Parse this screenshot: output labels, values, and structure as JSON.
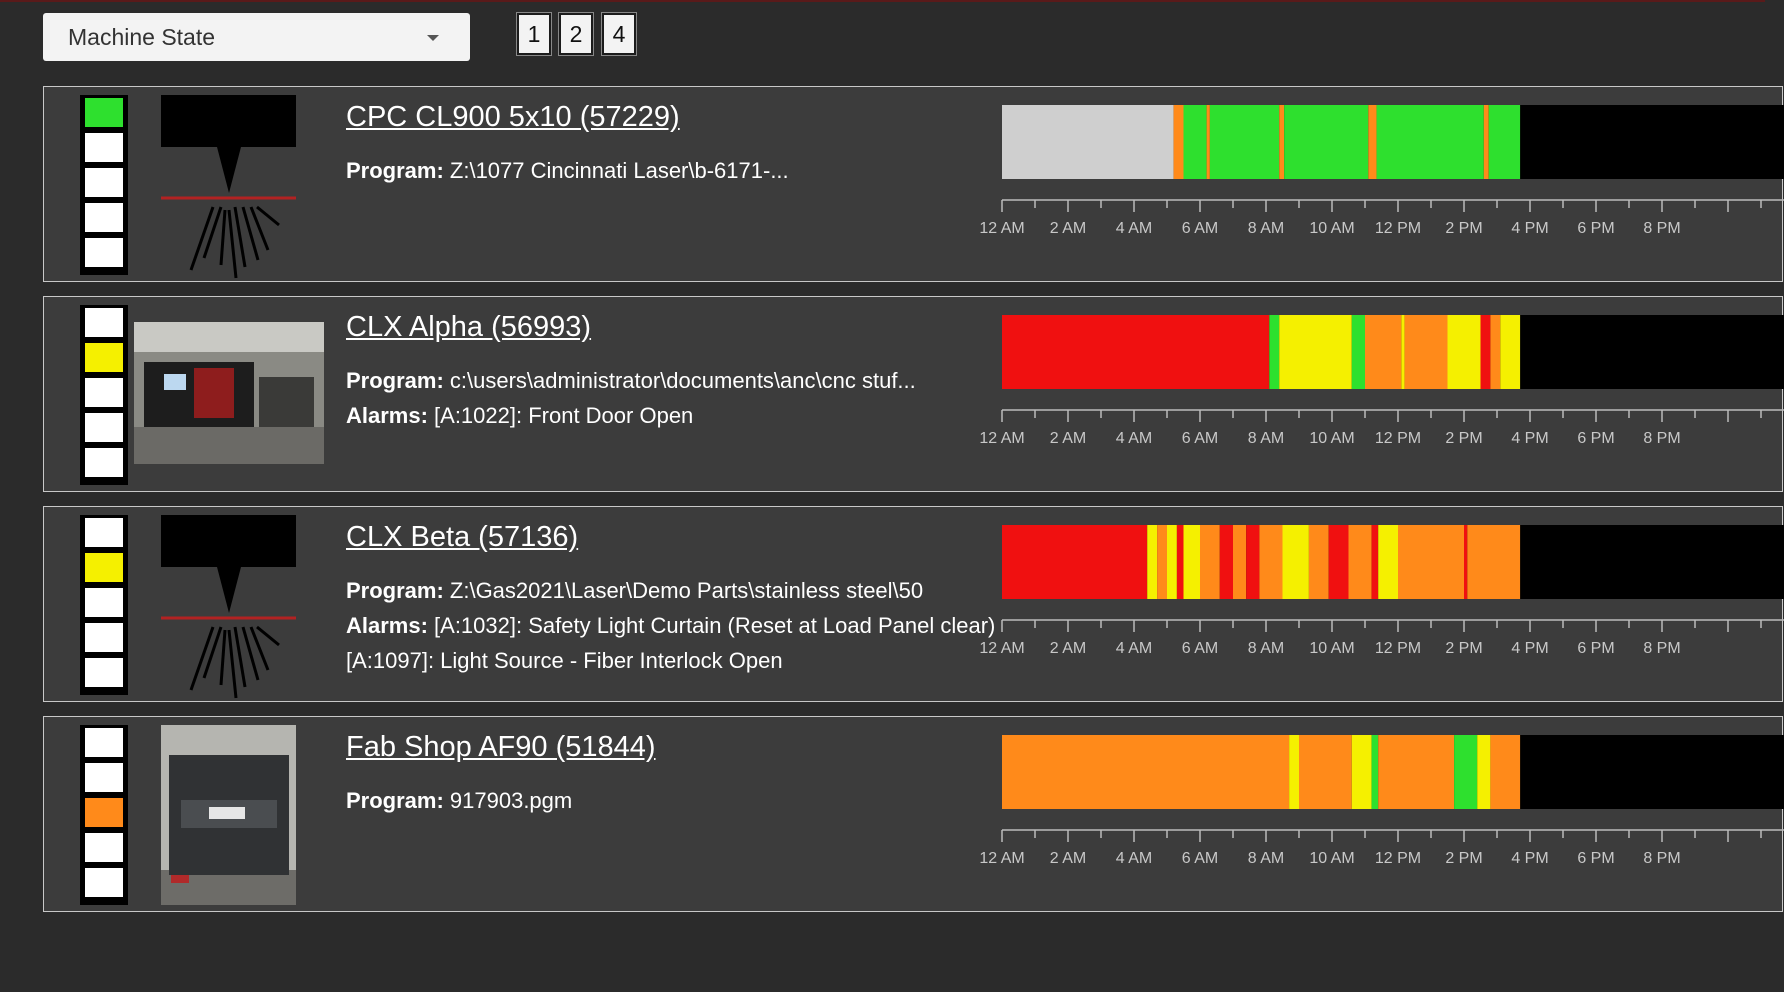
{
  "filter": {
    "selected": "Machine State"
  },
  "pages": [
    "1",
    "2",
    "4"
  ],
  "colors": {
    "green": "#2ee02e",
    "yellow": "#f5f000",
    "orange": "#ff8a1a",
    "red": "#f01010",
    "gray": "#cfcfcf",
    "black": "#000000"
  },
  "axis_labels": [
    "12 AM",
    "2 AM",
    "4 AM",
    "6 AM",
    "8 AM",
    "10 AM",
    "12 PM",
    "2 PM",
    "4 PM",
    "6 PM",
    "8 PM"
  ],
  "machines": [
    {
      "title": "CPC CL900 5x10 (57229)",
      "image": "laser-cutter-icon",
      "active_light": 0,
      "rows": [
        {
          "label": "Program:",
          "value": " Z:\\1077 Cincinnati Laser\\b-6171-..."
        }
      ],
      "timeline": [
        {
          "start": 0,
          "end": 5.2,
          "state": "gray"
        },
        {
          "start": 5.2,
          "end": 5.5,
          "state": "orange"
        },
        {
          "start": 5.5,
          "end": 6.2,
          "state": "green"
        },
        {
          "start": 6.2,
          "end": 6.3,
          "state": "orange"
        },
        {
          "start": 6.3,
          "end": 8.4,
          "state": "green"
        },
        {
          "start": 8.4,
          "end": 8.55,
          "state": "orange"
        },
        {
          "start": 8.55,
          "end": 11.1,
          "state": "green"
        },
        {
          "start": 11.1,
          "end": 11.35,
          "state": "orange"
        },
        {
          "start": 11.35,
          "end": 14.6,
          "state": "green"
        },
        {
          "start": 14.6,
          "end": 14.75,
          "state": "orange"
        },
        {
          "start": 14.75,
          "end": 15.7,
          "state": "green"
        }
      ]
    },
    {
      "title": "CLX Alpha (56993)",
      "image": "machine-photo",
      "active_light": 1,
      "rows": [
        {
          "label": "Program:",
          "value": " c:\\users\\administrator\\documents\\anc\\cnc stuf..."
        },
        {
          "label": "Alarms:",
          "value": " [A:1022]: Front Door Open"
        }
      ],
      "timeline": [
        {
          "start": 0,
          "end": 8.1,
          "state": "red"
        },
        {
          "start": 8.1,
          "end": 8.4,
          "state": "green"
        },
        {
          "start": 8.4,
          "end": 10.6,
          "state": "yellow"
        },
        {
          "start": 10.6,
          "end": 11.0,
          "state": "green"
        },
        {
          "start": 11.0,
          "end": 12.1,
          "state": "orange"
        },
        {
          "start": 12.1,
          "end": 12.2,
          "state": "yellow"
        },
        {
          "start": 12.2,
          "end": 13.5,
          "state": "orange"
        },
        {
          "start": 13.5,
          "end": 14.5,
          "state": "yellow"
        },
        {
          "start": 14.5,
          "end": 14.8,
          "state": "red"
        },
        {
          "start": 14.8,
          "end": 15.1,
          "state": "orange"
        },
        {
          "start": 15.1,
          "end": 15.7,
          "state": "yellow"
        }
      ]
    },
    {
      "title": "CLX Beta (57136)",
      "image": "laser-cutter-icon",
      "active_light": 1,
      "rows": [
        {
          "label": "Program:",
          "value": " Z:\\Gas2021\\Laser\\Demo Parts\\stainless steel\\50"
        },
        {
          "label": "Alarms:",
          "value": " [A:1032]: Safety Light Curtain (Reset at Load Panel clear) [A:1097]: Light Source - Fiber Interlock Open",
          "wrap": true
        }
      ],
      "timeline": [
        {
          "start": 0,
          "end": 4.4,
          "state": "red"
        },
        {
          "start": 4.4,
          "end": 4.7,
          "state": "yellow"
        },
        {
          "start": 4.7,
          "end": 5.0,
          "state": "orange"
        },
        {
          "start": 5.0,
          "end": 5.3,
          "state": "yellow"
        },
        {
          "start": 5.3,
          "end": 5.5,
          "state": "red"
        },
        {
          "start": 5.5,
          "end": 6.0,
          "state": "yellow"
        },
        {
          "start": 6.0,
          "end": 6.6,
          "state": "orange"
        },
        {
          "start": 6.6,
          "end": 7.0,
          "state": "red"
        },
        {
          "start": 7.0,
          "end": 7.4,
          "state": "orange"
        },
        {
          "start": 7.4,
          "end": 7.8,
          "state": "red"
        },
        {
          "start": 7.8,
          "end": 8.5,
          "state": "orange"
        },
        {
          "start": 8.5,
          "end": 9.3,
          "state": "yellow"
        },
        {
          "start": 9.3,
          "end": 9.9,
          "state": "orange"
        },
        {
          "start": 9.9,
          "end": 10.5,
          "state": "red"
        },
        {
          "start": 10.5,
          "end": 11.2,
          "state": "orange"
        },
        {
          "start": 11.2,
          "end": 11.4,
          "state": "red"
        },
        {
          "start": 11.4,
          "end": 12.0,
          "state": "yellow"
        },
        {
          "start": 12.0,
          "end": 14.0,
          "state": "orange"
        },
        {
          "start": 14.0,
          "end": 14.1,
          "state": "red"
        },
        {
          "start": 14.1,
          "end": 15.7,
          "state": "orange"
        }
      ]
    },
    {
      "title": "Fab Shop AF90 (51844)",
      "image": "press-brake-photo",
      "active_light": 2,
      "rows": [
        {
          "label": "Program:",
          "value": " 917903.pgm"
        }
      ],
      "timeline": [
        {
          "start": 0,
          "end": 8.7,
          "state": "orange"
        },
        {
          "start": 8.7,
          "end": 9.0,
          "state": "yellow"
        },
        {
          "start": 9.0,
          "end": 10.6,
          "state": "orange"
        },
        {
          "start": 10.6,
          "end": 11.2,
          "state": "yellow"
        },
        {
          "start": 11.2,
          "end": 11.4,
          "state": "green"
        },
        {
          "start": 11.4,
          "end": 13.7,
          "state": "orange"
        },
        {
          "start": 13.7,
          "end": 14.4,
          "state": "green"
        },
        {
          "start": 14.4,
          "end": 14.8,
          "state": "yellow"
        },
        {
          "start": 14.8,
          "end": 15.7,
          "state": "orange"
        }
      ]
    }
  ]
}
